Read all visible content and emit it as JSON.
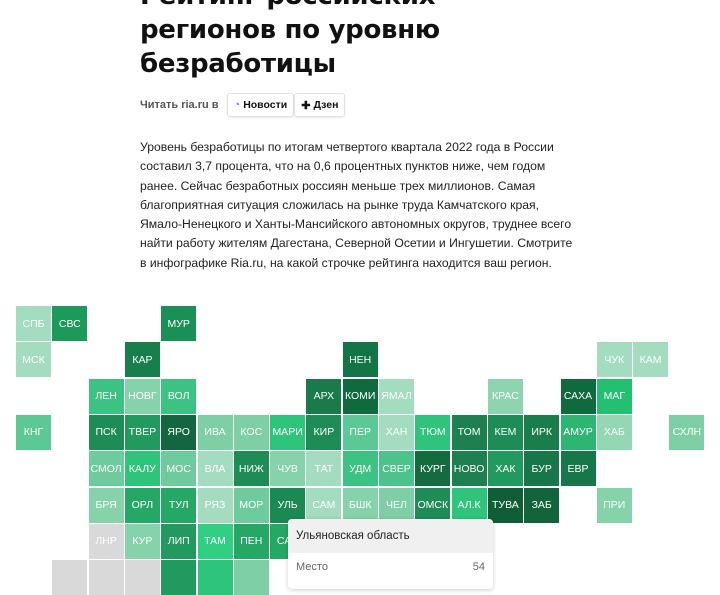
{
  "article": {
    "title_lines": [
      "Рейтинг российских",
      "регионов по уровню",
      "безработицы"
    ],
    "read_label": "Читать ria.ru в",
    "buttons": [
      {
        "label": "Новости",
        "icon": "news-icon"
      },
      {
        "label": "Дзен",
        "icon": "dzen-icon"
      }
    ],
    "paragraph": "Уровень безработицы по итогам четвертого квартала 2022 года в России составил 3,7 процента, что на 0,6 процентных пунктов ниже, чем годом ранее. Сейчас безработных россиян меньше трех миллионов. Самая благоприятная ситуация сложилась на рынке труда Камчатского края, Ямало-Ненецкого и Ханты-Мансийского автономных округов, труднее всего найти работу жителям Дагестана, Северной Осетии и Ингушетии. Смотрите в инфографике Ria.ru, на какой строчке рейтинга находится ваш регион."
  },
  "map": {
    "rows": [
      [
        {
          "label": "СПБ",
          "color": "#a4dcc0"
        },
        {
          "label": "СВС",
          "color": "#1b9a5a"
        },
        null,
        null,
        {
          "label": "МУР",
          "color": "#1a8f56"
        }
      ],
      [
        {
          "label": "МСК",
          "color": "#a4dcc0"
        },
        null,
        null,
        {
          "label": "КАР",
          "color": "#177f4b"
        },
        null,
        null,
        null,
        null,
        null,
        {
          "label": "НЕН",
          "color": "#137446"
        },
        null,
        null,
        null,
        null,
        null,
        null,
        {
          "label": "ЧУК",
          "color": "#a4dcc0"
        },
        {
          "label": "КАМ",
          "color": "#a4dcc0"
        }
      ],
      [
        null,
        null,
        {
          "label": "ЛЕН",
          "color": "#3cc283"
        },
        {
          "label": "НОВГ",
          "color": "#86d2ab"
        },
        {
          "label": "ВОЛ",
          "color": "#3cc283"
        },
        null,
        null,
        null,
        {
          "label": "АРХ",
          "color": "#1a7a4a"
        },
        {
          "label": "КОМИ",
          "color": "#0f6a3d"
        },
        {
          "label": "ЯМАЛ",
          "color": "#a4dcc0"
        },
        null,
        null,
        {
          "label": "КРАС",
          "color": "#8fd4b1"
        },
        null,
        {
          "label": "САХА",
          "color": "#0f6a3d"
        },
        {
          "label": "МАГ",
          "color": "#22c070"
        }
      ],
      [
        {
          "label": "КНГ",
          "color": "#5cc896"
        },
        null,
        {
          "label": "ПСК",
          "color": "#1e8c57"
        },
        {
          "label": "ТВЕР",
          "color": "#229a5f"
        },
        {
          "label": "ЯРО",
          "color": "#13663f"
        },
        {
          "label": "ИВА",
          "color": "#7fcfa6"
        },
        {
          "label": "КОС",
          "color": "#7fcfa6"
        },
        {
          "label": "МАРИ",
          "color": "#2fc47c"
        },
        {
          "label": "КИР",
          "color": "#1e8c57"
        },
        {
          "label": "ПЕР",
          "color": "#5cc896"
        },
        {
          "label": "ХАН",
          "color": "#a4dcc0"
        },
        {
          "label": "ТЮМ",
          "color": "#2fc47c"
        },
        {
          "label": "ТОМ",
          "color": "#1e8050"
        },
        {
          "label": "КЕМ",
          "color": "#1e8c57"
        },
        {
          "label": "ИРК",
          "color": "#1a7d4c"
        },
        {
          "label": "АМУР",
          "color": "#2db673"
        },
        {
          "label": "ХАБ",
          "color": "#94d7b5"
        },
        null,
        {
          "label": "СХЛН",
          "color": "#7fcfa6"
        }
      ],
      [
        null,
        null,
        {
          "label": "СМОЛ",
          "color": "#6ecb9d"
        },
        {
          "label": "КАЛУ",
          "color": "#2fc47c"
        },
        {
          "label": "МОС",
          "color": "#6ecb9d"
        },
        {
          "label": "ВЛА",
          "color": "#a4dcc0"
        },
        {
          "label": "НИЖ",
          "color": "#1e8c57"
        },
        {
          "label": "ЧУВ",
          "color": "#86d2ab"
        },
        {
          "label": "ТАТ",
          "color": "#a4dcc0"
        },
        {
          "label": "УДМ",
          "color": "#3cc283"
        },
        {
          "label": "СВЕР",
          "color": "#4cc38c"
        },
        {
          "label": "КУРГ",
          "color": "#146b40"
        },
        {
          "label": "НОВО",
          "color": "#1e8050"
        },
        {
          "label": "ХАК",
          "color": "#229a5f"
        },
        {
          "label": "БУР",
          "color": "#17774a"
        },
        {
          "label": "ЕВР",
          "color": "#17774a"
        }
      ],
      [
        null,
        null,
        {
          "label": "БРЯ",
          "color": "#86d2ab"
        },
        {
          "label": "ОРЛ",
          "color": "#25a866"
        },
        {
          "label": "ТУЛ",
          "color": "#25a866"
        },
        {
          "label": "РЯЗ",
          "color": "#a4dcc0"
        },
        {
          "label": "МОР",
          "color": "#6ecb9d"
        },
        {
          "label": "УЛЬ",
          "color": "#1a8a52"
        },
        {
          "label": "САМ",
          "color": "#a4dcc0"
        },
        {
          "label": "БШК",
          "color": "#86d2ab"
        },
        {
          "label": "ЧЕЛ",
          "color": "#7fcfa6"
        },
        {
          "label": "ОМСК",
          "color": "#1e8c57"
        },
        {
          "label": "АЛ.К",
          "color": "#2fc47c"
        },
        {
          "label": "ТУВА",
          "color": "#0f5e37"
        },
        {
          "label": "ЗАБ",
          "color": "#12653b"
        },
        null,
        {
          "label": "ПРИ",
          "color": "#86d2ab"
        }
      ],
      [
        null,
        null,
        {
          "label": "ЛНР",
          "color": "#d9d9d9"
        },
        {
          "label": "КУР",
          "color": "#86d2ab"
        },
        {
          "label": "ЛИП",
          "color": "#229a5f"
        },
        {
          "label": "ТАМ",
          "color": "#2fd082"
        },
        {
          "label": "ПЕН",
          "color": "#25a866"
        },
        {
          "label": "САР",
          "color": "#25a866"
        }
      ],
      [
        null,
        {
          "label": "",
          "color": "#d9d9d9"
        },
        {
          "label": "",
          "color": "#d9d9d9"
        },
        {
          "label": "",
          "color": "#d9d9d9"
        },
        {
          "label": "",
          "color": "#229a5f"
        },
        {
          "label": "",
          "color": "#2fc47c"
        },
        {
          "label": "",
          "color": "#7fcfa6"
        }
      ]
    ]
  },
  "tooltip": {
    "region": "Ульяновская область",
    "rank_label": "Место",
    "rank_value": "54"
  }
}
